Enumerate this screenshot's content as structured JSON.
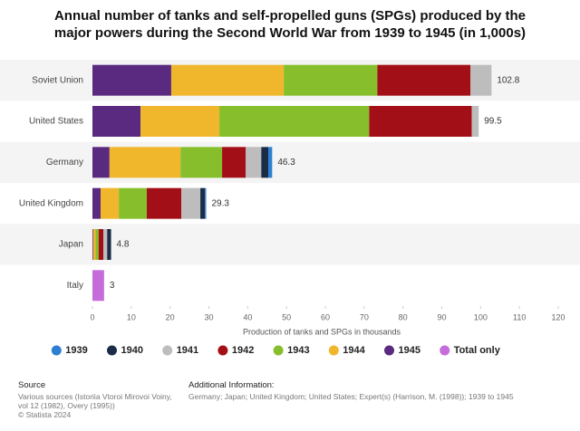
{
  "chart_data": {
    "type": "bar",
    "orientation": "horizontal",
    "stacked": true,
    "title": "Annual number of tanks and self-propelled guns (SPGs) produced by the major powers during the Second World War from 1939 to 1945 (in 1,000s)",
    "x_label": "Production of tanks and SPGs in thousands",
    "categories": [
      "Soviet Union",
      "United States",
      "Germany",
      "United Kingdom",
      "Japan",
      "Italy"
    ],
    "series": [
      {
        "name": "1939",
        "color": "#2d7fd1",
        "values": [
          null,
          null,
          1.0,
          0.3,
          null,
          null
        ]
      },
      {
        "name": "1940",
        "color": "#1b2c47",
        "values": [
          null,
          null,
          1.8,
          1.2,
          1.0,
          null
        ]
      },
      {
        "name": "1941",
        "color": "#bdbdbd",
        "values": [
          5.4,
          1.8,
          4.0,
          4.9,
          1.0,
          null
        ]
      },
      {
        "name": "1942",
        "color": "#a30f16",
        "values": [
          24.0,
          26.4,
          6.1,
          8.9,
          1.2,
          null
        ]
      },
      {
        "name": "1943",
        "color": "#86bf2b",
        "values": [
          24.1,
          38.6,
          10.7,
          7.2,
          0.8,
          null
        ]
      },
      {
        "name": "1944",
        "color": "#f0b72c",
        "values": [
          29.0,
          20.3,
          18.3,
          4.7,
          0.6,
          null
        ]
      },
      {
        "name": "1945",
        "color": "#5a2a80",
        "values": [
          20.3,
          12.4,
          4.4,
          2.1,
          0.2,
          null
        ]
      },
      {
        "name": "Total only",
        "color": "#c56cda",
        "values": [
          null,
          null,
          null,
          null,
          null,
          3
        ]
      }
    ],
    "totals": [
      102.8,
      99.5,
      46.3,
      29.3,
      4.8,
      3
    ],
    "xlim": [
      0,
      120
    ],
    "xticks": [
      0,
      10,
      20,
      30,
      40,
      50,
      60,
      70,
      80,
      90,
      100,
      110,
      120
    ],
    "legend": "bottom",
    "source_title": "Source",
    "source_text": "Various sources (Istoriia Vtoroi Mirovoi Voiny, vol 12 (1982), Overy (1995))",
    "copyright": "© Statista 2024",
    "info_title": "Additional Information:",
    "info_text": "Germany; Japan; United Kingdom; United States; Expert(s) (Harrison, M. (1998)); 1939 to 1945"
  }
}
